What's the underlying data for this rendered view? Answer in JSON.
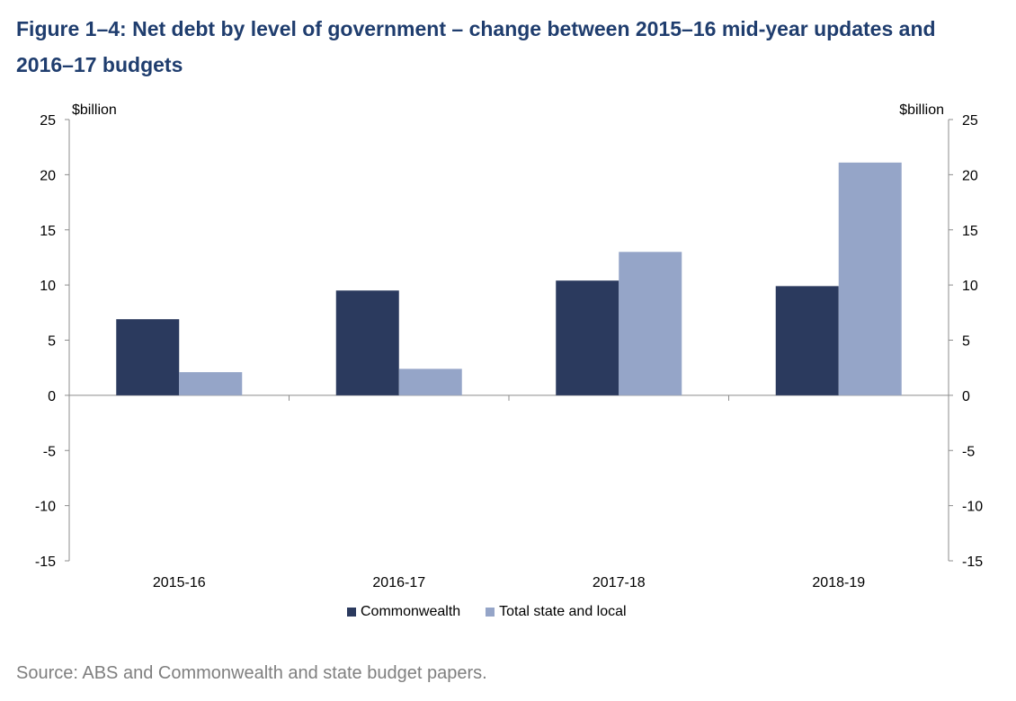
{
  "title_line1": "Figure 1–4: Net debt by level of government – change between 2015–16 mid-year updates and",
  "title_line2": "2016–17 budgets",
  "source": "Source: ABS and Commonwealth and state budget papers.",
  "chart_data": {
    "type": "bar",
    "categories": [
      "2015-16",
      "2016-17",
      "2017-18",
      "2018-19"
    ],
    "series": [
      {
        "name": "Commonwealth",
        "color": "#2b3a5e",
        "values": [
          6.9,
          9.5,
          10.4,
          9.9
        ]
      },
      {
        "name": "Total state and local",
        "color": "#95a5c8",
        "values": [
          2.1,
          2.4,
          13.0,
          21.1
        ]
      }
    ],
    "ylabel_left": "$billion",
    "ylabel_right": "$billion",
    "ylim": [
      -15,
      25
    ],
    "yticks": [
      25,
      20,
      15,
      10,
      5,
      0,
      -5,
      -10,
      -15
    ],
    "legend": "bottom-center",
    "grid": false
  }
}
